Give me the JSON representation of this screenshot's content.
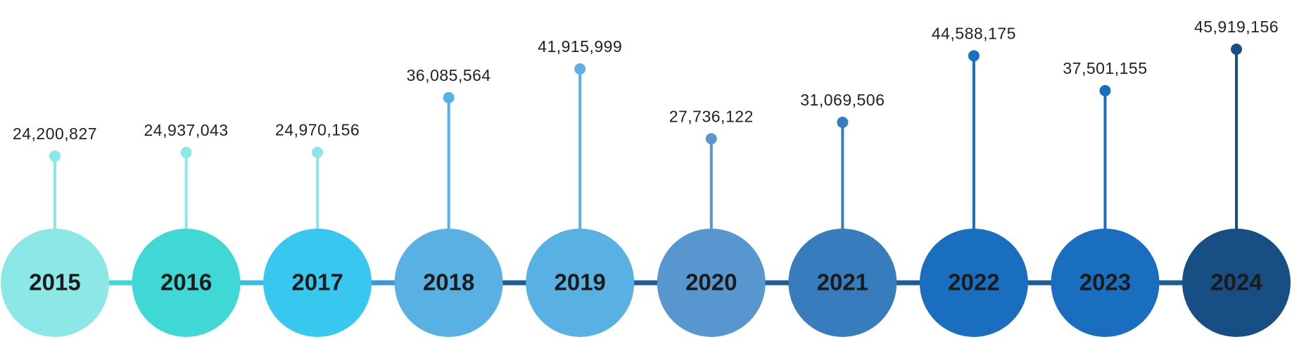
{
  "chart_data": {
    "type": "lollipop-timeline",
    "categories": [
      "2015",
      "2016",
      "2017",
      "2018",
      "2019",
      "2020",
      "2021",
      "2022",
      "2023",
      "2024"
    ],
    "values": [
      24200827,
      24937043,
      24970156,
      36085564,
      41915999,
      27736122,
      31069506,
      44588175,
      37501155,
      45919156
    ],
    "value_labels": [
      "24,200,827",
      "24,937,043",
      "24,970,156",
      "36,085,564",
      "41,915,999",
      "27,736,122",
      "31,069,506",
      "44,588,175",
      "37,501,155",
      "45,919,156"
    ],
    "colors": [
      "#8be8e6",
      "#3fd8d4",
      "#38c8ef",
      "#58b1e2",
      "#58b1e2",
      "#5896cf",
      "#377dbd",
      "#1a6ebf",
      "#1a6ebf",
      "#174f85"
    ],
    "stem_colors": [
      "#8be8e6",
      "#8be8e6",
      "#8be8e6",
      "#58b1e2",
      "#58b1e2",
      "#5896cf",
      "#377dbd",
      "#1a6ebf",
      "#1a6ebf",
      "#174f85"
    ],
    "connector_colors": [
      "#40d4dc",
      "#36bce6",
      "#3a94d8",
      "#1d5c98",
      "#1d5c98",
      "#1d5c98",
      "#1d5c98",
      "#1d5c98",
      "#1d5c98"
    ]
  }
}
